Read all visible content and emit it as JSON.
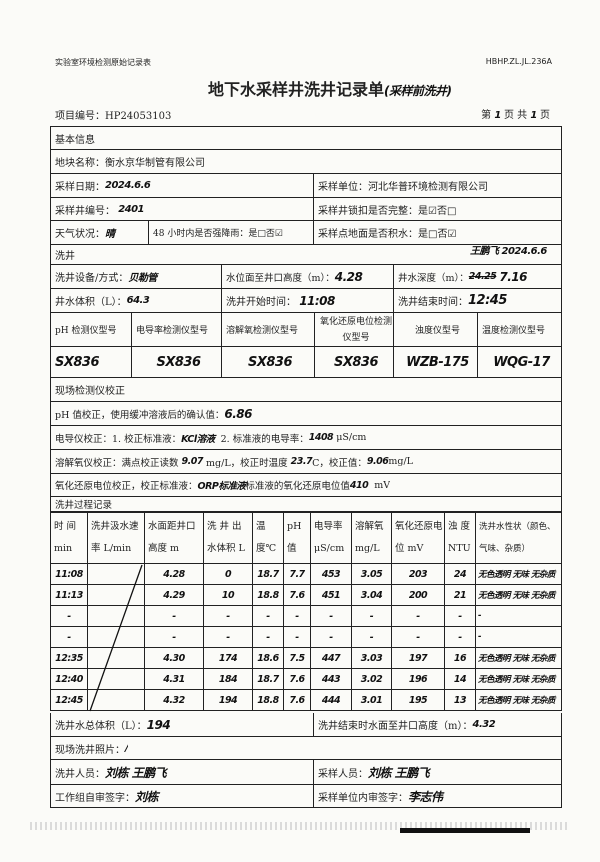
{
  "header": {
    "form_name": "实验室环境检测原始记录表",
    "form_code": "HBHP.ZL.JL.236A",
    "title": "地下水采样井洗井记录单",
    "title_note": "(采样前洗井)",
    "project_no": "项目编号：HP24053103",
    "page": {
      "prefix": "第",
      "current": "1",
      "mid": "页 共",
      "total": "1",
      "suffix": "页"
    }
  },
  "basic": {
    "section": "基本信息",
    "site_label": "地块名称：衡水京华制管有限公司",
    "date_label": "采样日期：",
    "date_value": "2024.6.6",
    "unit_label": "采样单位：河北华普环境检测有限公司",
    "well_label": "采样井编号：",
    "well_value": "2401",
    "lock_label": "采样井锁扣是否完整：是☑否□",
    "weather_label": "天气状况：",
    "weather_value": "晴",
    "rain_label": "48 小时内是否强降雨：是□否☑",
    "water_label": "采样点地面是否积水：是□否☑"
  },
  "wash": {
    "section": "洗井",
    "correction_note": "王鹏飞 2024.6.6",
    "equip_label": "洗井设备/方式：",
    "equip_value": "贝勒管",
    "level_label": "水位面至井口高度（m）：",
    "level_value": "4.28",
    "depth_label": "井水深度（m）：",
    "depth_struck": "24.25",
    "depth_value": "7.16",
    "volume_label": "井水体积（L）：",
    "volume_value": "64.3",
    "start_label": "洗井开始时间：",
    "start_value": "11:08",
    "end_label": "洗井结束时间：",
    "end_value": "12:45"
  },
  "instruments": {
    "headers": [
      "pH 检测仪型号",
      "电导率检测仪型号",
      "溶解氧检测仪型号",
      "氧化还原电位检测仪型号",
      "浊度仪型号",
      "温度检测仪型号"
    ],
    "values": [
      "SX836",
      "SX836",
      "SX836",
      "SX836",
      "WZB-175",
      "WQG-17"
    ]
  },
  "calibration": {
    "section": "现场检测仪校正",
    "ph_label": "pH 值校正，使用缓冲溶液后的确认值：",
    "ph_value": "6.86",
    "cond_label1": "电导仪校正：1. 校正标准液：",
    "cond_std": "KCl溶液",
    "cond_label2": "2. 标准液的电导率：",
    "cond_value": "1408",
    "cond_unit": "μS/cm",
    "do_label1": "溶解氧仪校正：满点校正读数",
    "do_reading": "9.07",
    "do_label2": "mg/L，校正时温度",
    "do_temp": "23.7",
    "do_label3": "C，校正值：",
    "do_value": "9.06",
    "do_unit": "mg/L",
    "orp_label1": "氧化还原电位校正，校正标准液：",
    "orp_std": "ORP标准液",
    "orp_label2": "标准液的氧化还原电位值",
    "orp_value": "410",
    "orp_unit": "mV"
  },
  "process": {
    "section": "洗井过程记录",
    "headers": [
      "时 间 min",
      "洗井汲水速率 L/min",
      "水面距井口高度 m",
      "洗 井 出 水体积 L",
      "温 度℃",
      "pH 值",
      "电导率 μS/cm",
      "溶解氧 mg/L",
      "氧化还原电位 mV",
      "浊 度 NTU",
      "洗井水性状（颜色、气味、杂质）"
    ],
    "rows": [
      [
        "11:08",
        "",
        "4.28",
        "0",
        "18.7",
        "7.7",
        "453",
        "3.05",
        "203",
        "24",
        "无色透明 无味 无杂质"
      ],
      [
        "11:13",
        "",
        "4.29",
        "10",
        "18.8",
        "7.6",
        "451",
        "3.04",
        "200",
        "21",
        "无色透明 无味 无杂质"
      ],
      [
        "-",
        "",
        "-",
        "-",
        "-",
        "-",
        "-",
        "-",
        "-",
        "-",
        "-"
      ],
      [
        "-",
        "",
        "-",
        "-",
        "-",
        "-",
        "-",
        "-",
        "-",
        "-",
        "-"
      ],
      [
        "12:35",
        "",
        "4.30",
        "174",
        "18.6",
        "7.5",
        "447",
        "3.03",
        "197",
        "16",
        "无色透明 无味 无杂质"
      ],
      [
        "12:40",
        "",
        "4.31",
        "184",
        "18.7",
        "7.6",
        "443",
        "3.02",
        "196",
        "14",
        "无色透明 无味 无杂质"
      ],
      [
        "12:45",
        "",
        "4.32",
        "194",
        "18.8",
        "7.6",
        "444",
        "3.01",
        "195",
        "13",
        "无色透明 无味 无杂质"
      ]
    ]
  },
  "footer": {
    "total_label": "洗井水总体积（L）：",
    "total_value": "194",
    "end_level_label": "洗井结束时水面至井口高度（m）：",
    "end_level_value": "4.32",
    "photo_label": "现场洗井照片：",
    "photo_value": "/",
    "washer_label": "洗井人员：",
    "washer_value": "刘栋 王鹏飞",
    "sampler_label": "采样人员：",
    "sampler_value": "刘栋 王鹏飞",
    "self_review_label": "工作组自审签字：",
    "self_review_value": "刘栋",
    "internal_review_label": "采样单位内审签字：",
    "internal_review_value": "李志伟"
  }
}
